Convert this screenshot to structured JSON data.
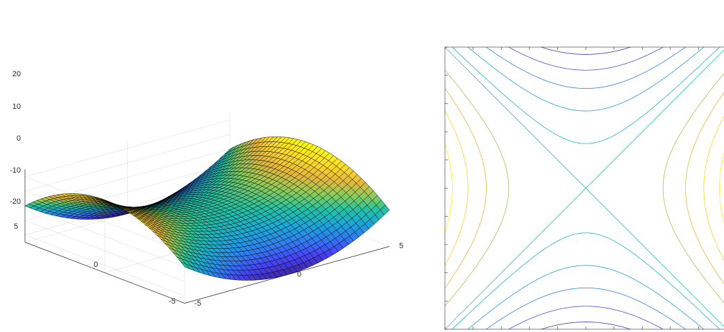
{
  "figure": {
    "background": "#ffffff",
    "axis_color": "#262626",
    "grid_color": "#dedede",
    "mesh_color": "#000000",
    "colormap": "parula",
    "colormap_stops": [
      "#3e26a8",
      "#4743f8",
      "#2f7ff1",
      "#1ba8d7",
      "#24c2a2",
      "#8ccc5a",
      "#e6b73c",
      "#fcdc29",
      "#f9fb0e"
    ]
  },
  "chart_data": [
    {
      "type": "surface",
      "function": "z = x^2 - y^2",
      "x_range": [
        -5,
        5
      ],
      "y_range": [
        -5,
        5
      ],
      "grid_points": 41,
      "xlim": [
        -5,
        5
      ],
      "ylim": [
        -5,
        5
      ],
      "zlim": [
        -25,
        25
      ],
      "x_ticks": [
        "-5",
        "0",
        "5"
      ],
      "y_ticks": [
        "5",
        "0",
        "-5"
      ],
      "z_ticks": [
        "-20",
        "-10",
        "0",
        "10",
        "20"
      ],
      "z_tick_values": [
        -20,
        -10,
        0,
        10,
        20
      ],
      "grid": true,
      "title": "",
      "xlabel": "",
      "ylabel": "",
      "zlabel": ""
    },
    {
      "type": "contour",
      "function": "z = x^2 - y^2",
      "xlim": [
        -5,
        5
      ],
      "ylim": [
        -5,
        5
      ],
      "levels": [
        -22.5,
        -17.5,
        -12.5,
        -7.5,
        -2.5,
        0,
        7.5,
        12.5,
        17.5,
        22.5
      ],
      "clim": [
        -25,
        25
      ],
      "ticks_per_axis": 11,
      "tick_labels_visible": false,
      "title": "",
      "xlabel": "",
      "ylabel": ""
    }
  ]
}
